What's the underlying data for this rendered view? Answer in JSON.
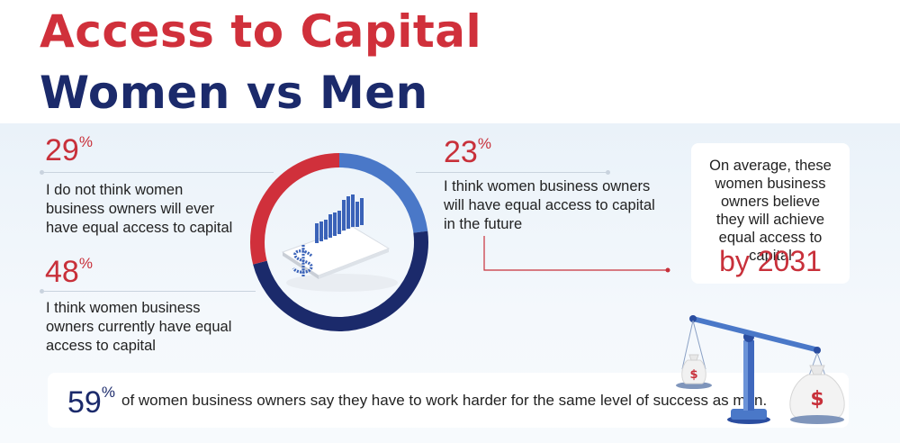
{
  "title_line1": "Access to Capital",
  "title_line2": "Women vs Men",
  "stats": {
    "never": {
      "value": "29",
      "unit": "%",
      "text": "I do not think women business owners will ever have equal access to capital"
    },
    "currently": {
      "value": "48",
      "unit": "%",
      "text": "I think women business owners currently have equal access to capital"
    },
    "future": {
      "value": "23",
      "unit": "%",
      "text": "I think women business owners will have equal access to capital in the future"
    }
  },
  "donut": [
    {
      "label": "future",
      "percent": 23,
      "color": "#4a78c8"
    },
    {
      "label": "currently",
      "percent": 48,
      "color": "#1b2a6b"
    },
    {
      "label": "never",
      "percent": 29,
      "color": "#d0303b"
    }
  ],
  "card": {
    "text": "On average, these women business owners believe they will achieve equal access to capital",
    "year": "by 2031"
  },
  "bottom": {
    "value": "59",
    "unit": "%",
    "text": "of women business owners say they have to work harder for the same level of success as men."
  },
  "icons": {
    "center": "dollar-chart-icon",
    "scale": "balance-scale-icon",
    "bag_symbol": "$"
  },
  "colors": {
    "red": "#d0303b",
    "navy": "#1b2a6b",
    "blue": "#4a78c8"
  }
}
